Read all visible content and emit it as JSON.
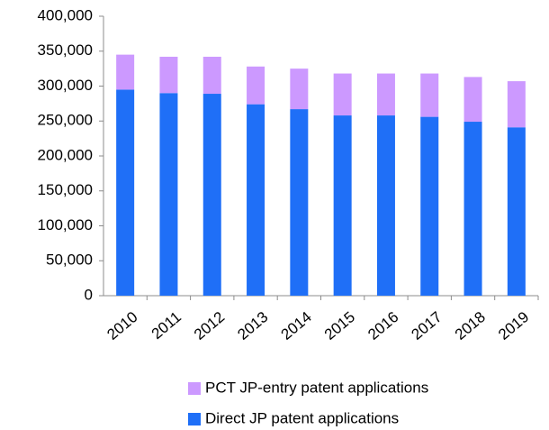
{
  "chart_data": {
    "type": "stacked_bar",
    "categories": [
      "2010",
      "2011",
      "2012",
      "2013",
      "2014",
      "2015",
      "2016",
      "2017",
      "2018",
      "2019"
    ],
    "series": [
      {
        "name": "Direct JP patent applications",
        "color": "#1f6ff7",
        "values": [
          295000,
          290000,
          289000,
          274000,
          267000,
          258000,
          258000,
          256000,
          249000,
          241000
        ]
      },
      {
        "name": "PCT JP-entry patent applications",
        "color": "#cc99ff",
        "values": [
          50000,
          52000,
          53000,
          54000,
          58000,
          60000,
          60000,
          62000,
          64000,
          66000
        ]
      }
    ],
    "ylim": [
      0,
      400000
    ],
    "yticks": [
      0,
      {
        "value": 50000,
        "label": "50,000"
      },
      {
        "value": 100000,
        "label": "100,000"
      },
      {
        "value": 150000,
        "label": "150,000"
      },
      {
        "value": 200000,
        "label": "200,000"
      },
      {
        "value": 250000,
        "label": "250,000"
      },
      {
        "value": 300000,
        "label": "300,000"
      },
      {
        "value": 350000,
        "label": "350,000"
      },
      {
        "value": 400000,
        "label": "400,000"
      }
    ],
    "legend": "bottom"
  }
}
